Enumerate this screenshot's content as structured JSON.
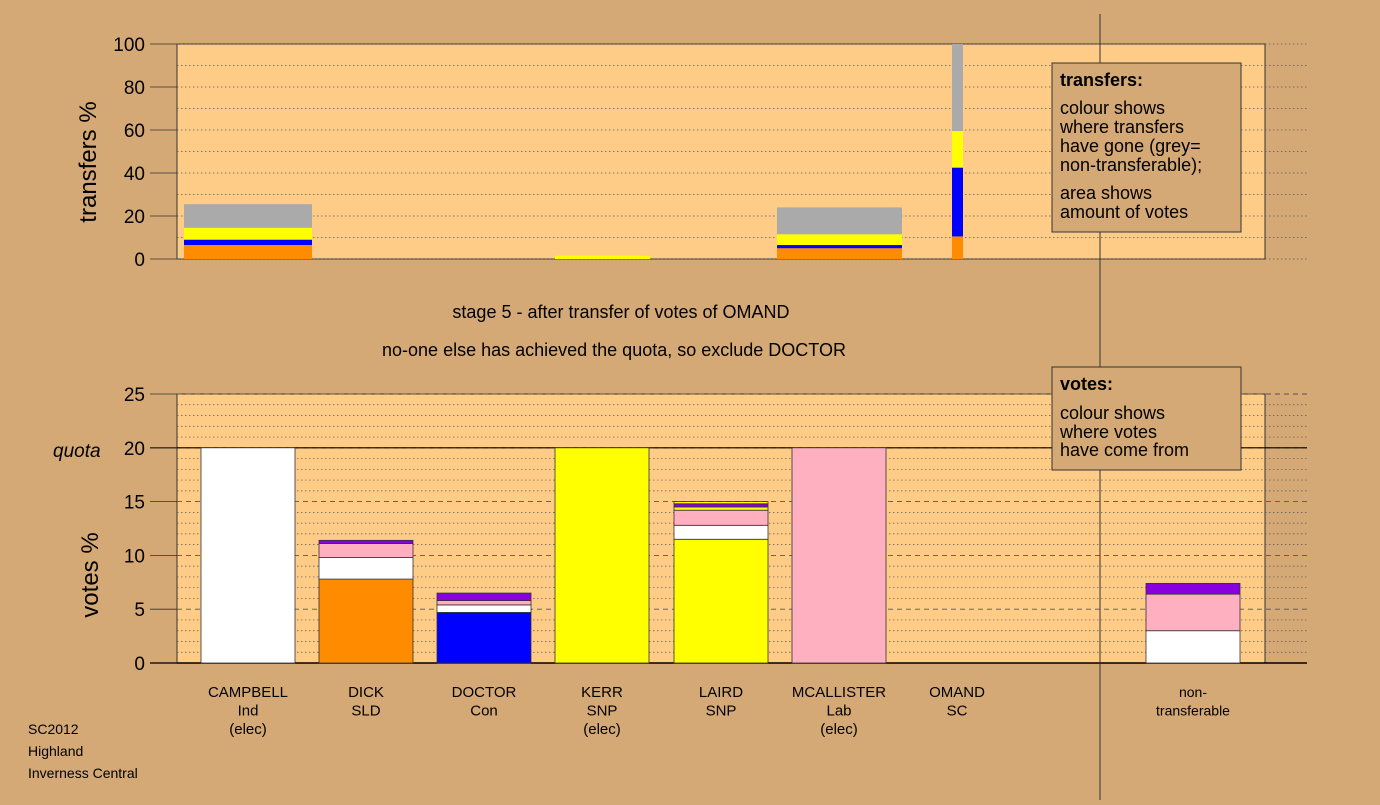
{
  "chart_data": [
    {
      "type": "bar",
      "stacked": true,
      "ylabel": "transfers %",
      "ylim": [
        0,
        100
      ],
      "yticks": [
        0,
        20,
        40,
        60,
        80,
        100
      ],
      "grid": "dotted",
      "stack_colors": [
        "#FF8C00",
        "#0000FF",
        "#FFFF00",
        "#AAAAAA"
      ],
      "bars": [
        {
          "name": "CAMPBELL",
          "segments": [
            6.5,
            2.5,
            5.5,
            11.0
          ],
          "wide": true
        },
        {
          "name": "KERR",
          "segments": [
            0,
            0,
            1.5,
            0
          ],
          "wide": true
        },
        {
          "name": "MCALLISTER",
          "segments": [
            5.0,
            1.5,
            5.0,
            12.5
          ],
          "wide": true
        },
        {
          "name": "OMAND",
          "segments": [
            10.5,
            32.0,
            17.0,
            40.5
          ],
          "wide": false
        }
      ]
    },
    {
      "type": "bar",
      "stacked": true,
      "ylabel": "votes %",
      "ylim": [
        0,
        25
      ],
      "yticks": [
        0,
        5,
        10,
        15,
        20,
        25
      ],
      "quota": 20,
      "quota_label": "quota",
      "grid": "dotted",
      "categories": [
        {
          "name": "CAMPBELL",
          "party": "Ind",
          "note": "(elec)"
        },
        {
          "name": "DICK",
          "party": "SLD",
          "note": ""
        },
        {
          "name": "DOCTOR",
          "party": "Con",
          "note": ""
        },
        {
          "name": "KERR",
          "party": "SNP",
          "note": "(elec)"
        },
        {
          "name": "LAIRD",
          "party": "SNP",
          "note": ""
        },
        {
          "name": "MCALLISTER",
          "party": "Lab",
          "note": "(elec)"
        },
        {
          "name": "OMAND",
          "party": "SC",
          "note": ""
        },
        {
          "name": "non-",
          "party": "transferable",
          "note": ""
        }
      ],
      "stacks": [
        [
          {
            "color": "#FFFFFF",
            "value": 20
          }
        ],
        [
          {
            "color": "#FF8C00",
            "value": 7.8
          },
          {
            "color": "#FFFFFF",
            "value": 2.0
          },
          {
            "color": "#FFB0C0",
            "value": 1.3
          },
          {
            "color": "#8800DD",
            "value": 0.3
          }
        ],
        [
          {
            "color": "#0000FF",
            "value": 4.7
          },
          {
            "color": "#FFFFFF",
            "value": 0.7
          },
          {
            "color": "#FFB0C0",
            "value": 0.4
          },
          {
            "color": "#8800DD",
            "value": 0.7
          }
        ],
        [
          {
            "color": "#FFFF00",
            "value": 20
          }
        ],
        [
          {
            "color": "#FFFF00",
            "value": 11.5
          },
          {
            "color": "#FFFFFF",
            "value": 1.3
          },
          {
            "color": "#FFB0C0",
            "value": 1.4
          },
          {
            "color": "#FFFF00",
            "value": 0.3
          },
          {
            "color": "#8800DD",
            "value": 0.3
          },
          {
            "color": "#FFFF00",
            "value": 0.2
          }
        ],
        [
          {
            "color": "#FFB0C0",
            "value": 20
          }
        ],
        [],
        [
          {
            "color": "#FFFFFF",
            "value": 3.0
          },
          {
            "color": "#FFB0C0",
            "value": 3.4
          },
          {
            "color": "#8800DD",
            "value": 1.0
          }
        ]
      ]
    }
  ],
  "stage_line1": "stage 5 - after transfer of votes of OMAND",
  "stage_line2": "no-one else has achieved the quota, so exclude DOCTOR",
  "transfers_legend": {
    "title": "transfers:",
    "lines1": [
      "colour shows",
      "where transfers",
      "have gone (grey=",
      "non-transferable);"
    ],
    "lines2": [
      "area shows",
      "amount of votes"
    ]
  },
  "votes_legend": {
    "title": "votes:",
    "lines": [
      "colour shows",
      "where votes",
      "have come from"
    ]
  },
  "footer": [
    "SC2012",
    "Highland",
    "Inverness Central"
  ],
  "colors": {
    "background": "#D4A975",
    "plot": "#FFCC88"
  }
}
